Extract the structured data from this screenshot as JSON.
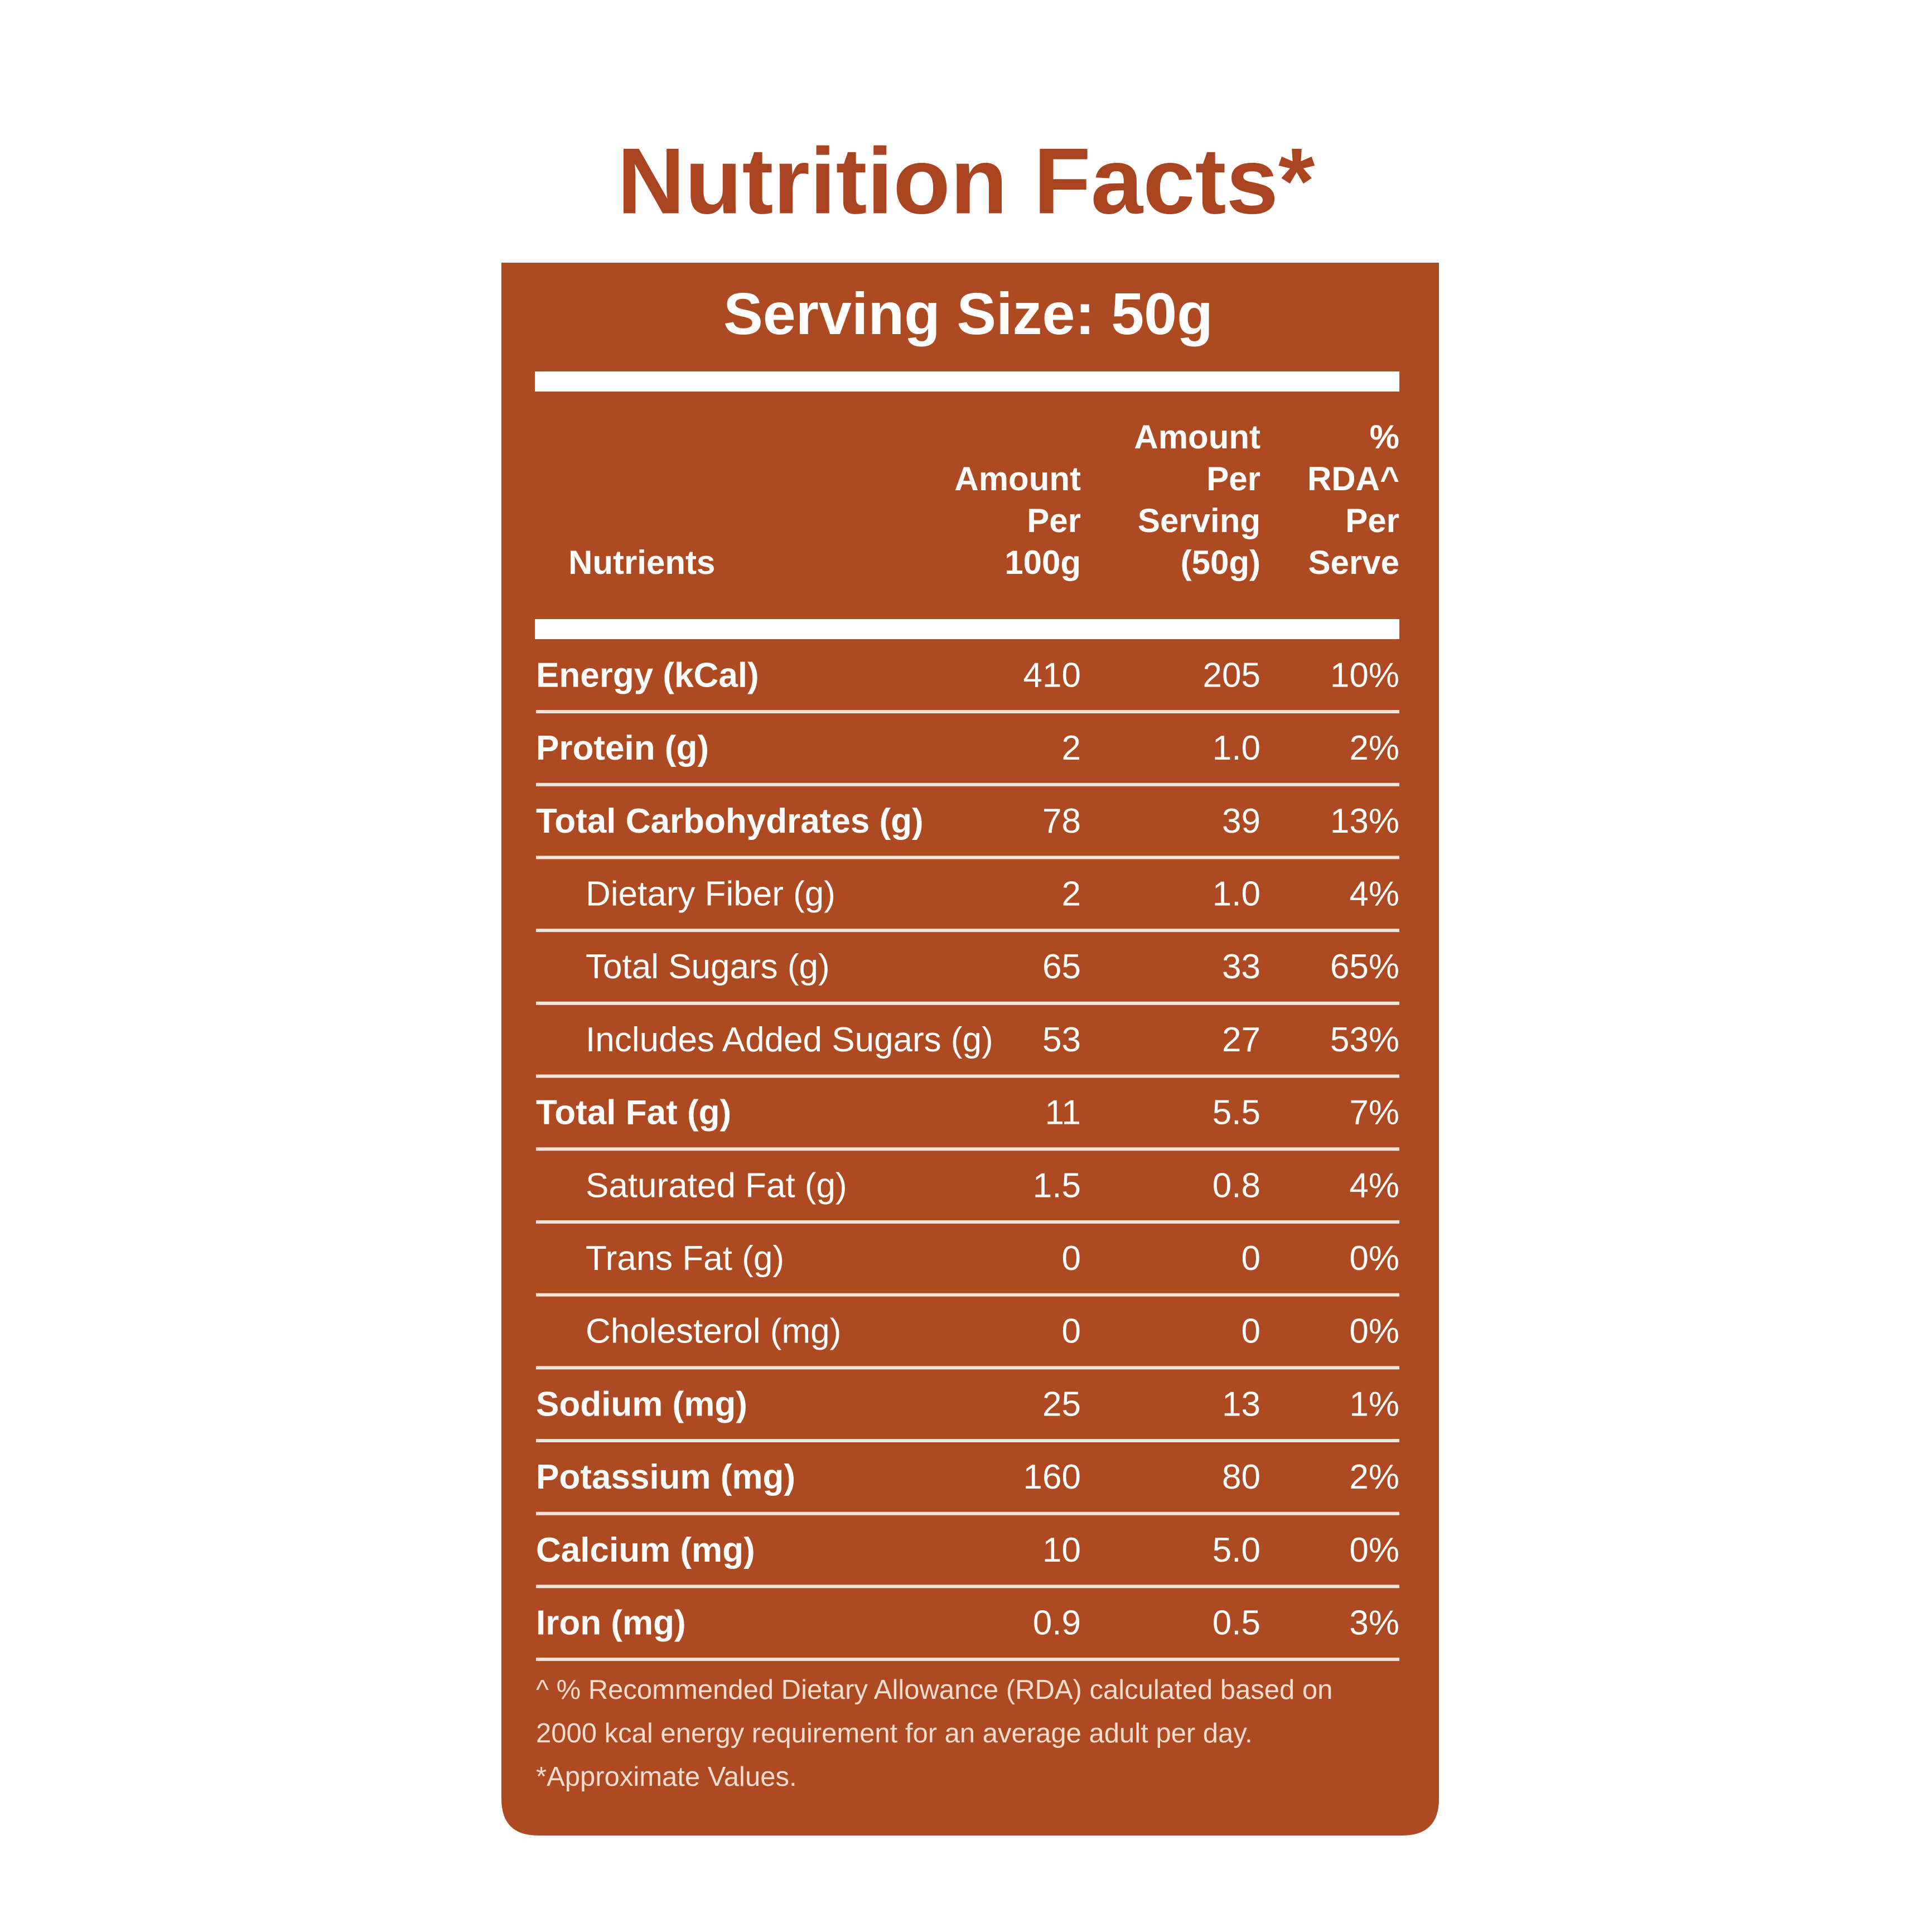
{
  "header": {
    "title": "Nutrition Facts*",
    "serving_size": "Serving Size: 50g"
  },
  "table": {
    "columns": [
      [
        "Nutrients"
      ],
      [
        "Amount",
        "Per",
        "100g"
      ],
      [
        "Amount",
        "Per",
        "Serving",
        "(50g)"
      ],
      [
        "%",
        "RDA^",
        "Per",
        "Serve"
      ]
    ],
    "rows": [
      {
        "label": "Energy (kCal)",
        "bold": true,
        "values": [
          "410",
          "205",
          "10%"
        ]
      },
      {
        "label": "Protein (g)",
        "bold": true,
        "values": [
          "2",
          "1.0",
          "2%"
        ]
      },
      {
        "label": "Total Carbohydrates (g)",
        "bold": true,
        "values": [
          "78",
          "39",
          "13%"
        ]
      },
      {
        "label": "Dietary Fiber (g)",
        "bold": false,
        "values": [
          "2",
          "1.0",
          "4%"
        ]
      },
      {
        "label": "Total Sugars (g)",
        "bold": false,
        "values": [
          "65",
          "33",
          "65%"
        ]
      },
      {
        "label": "Includes Added Sugars (g)",
        "bold": false,
        "values": [
          "53",
          "27",
          "53%"
        ]
      },
      {
        "label": "Total Fat (g)",
        "bold": true,
        "values": [
          "11",
          "5.5",
          "7%"
        ]
      },
      {
        "label": "Saturated Fat (g)",
        "bold": false,
        "values": [
          "1.5",
          "0.8",
          "4%"
        ]
      },
      {
        "label": "Trans Fat (g)",
        "bold": false,
        "values": [
          "0",
          "0",
          "0%"
        ]
      },
      {
        "label": "Cholesterol (mg)",
        "bold": false,
        "values": [
          "0",
          "0",
          "0%"
        ]
      },
      {
        "label": "Sodium (mg)",
        "bold": true,
        "values": [
          "25",
          "13",
          "1%"
        ]
      },
      {
        "label": "Potassium (mg)",
        "bold": true,
        "values": [
          "160",
          "80",
          "2%"
        ]
      },
      {
        "label": "Calcium (mg)",
        "bold": true,
        "values": [
          "10",
          "5.0",
          "0%"
        ]
      },
      {
        "label": "Iron (mg)",
        "bold": true,
        "values": [
          "0.9",
          "0.5",
          "3%"
        ]
      }
    ]
  },
  "footnotes": [
    "^ % Recommended Dietary Allowance (RDA) calculated based on",
    "2000 kcal energy requirement for an average adult per day.",
    "*Approximate Values."
  ]
}
